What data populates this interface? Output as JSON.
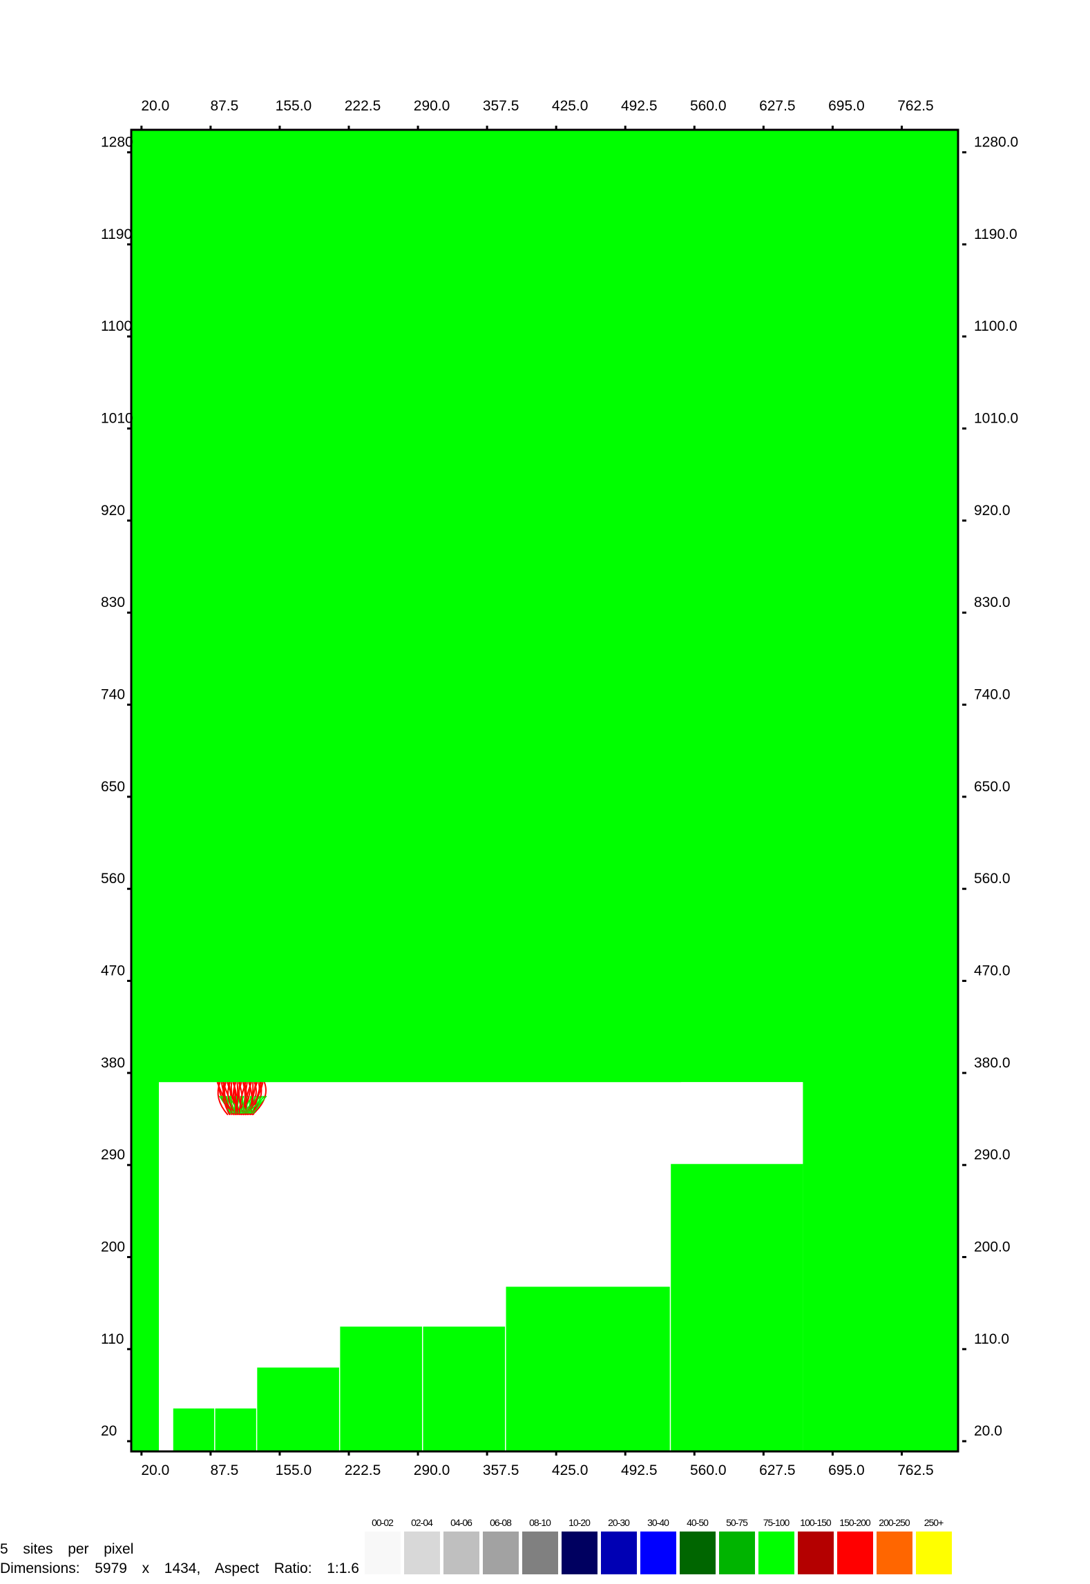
{
  "chart_data": {
    "type": "heatmap",
    "x_ticks": [
      "20.0",
      "87.5",
      "155.0",
      "222.5",
      "290.0",
      "357.5",
      "425.0",
      "492.5",
      "560.0",
      "627.5",
      "695.0",
      "762.5"
    ],
    "y_ticks_left": [
      "1280",
      "1190",
      "1100",
      "1010",
      "920",
      "830",
      "740",
      "650",
      "560",
      "470",
      "380",
      "290",
      "200",
      "110",
      "20"
    ],
    "y_ticks_right": [
      "1280.0",
      "1190.0",
      "1100.0",
      "1010.0",
      "920.0",
      "830.0",
      "740.0",
      "650.0",
      "560.0",
      "470.0",
      "380.0",
      "290.0",
      "200.0",
      "110.0",
      "20.0"
    ],
    "tick_values": {
      "x": [
        20.0,
        87.5,
        155.0,
        222.5,
        290.0,
        357.5,
        425.0,
        492.5,
        560.0,
        627.5,
        695.0,
        762.5
      ],
      "y": [
        1280,
        1190,
        1100,
        1010,
        920,
        830,
        740,
        650,
        560,
        470,
        380,
        290,
        200,
        110,
        20
      ]
    },
    "xlim": [
      10,
      817.5
    ],
    "ylim": [
      10,
      1302
    ],
    "background_color": "#00ff00",
    "empty_color": "#ffffff",
    "empty_regions": [
      {
        "x": [
          37,
          666
        ],
        "y": [
          10,
          371
        ]
      },
      {
        "x": [
          547,
          666
        ],
        "y": [
          291,
          371
        ]
      }
    ],
    "filled_blocks": [
      {
        "x": [
          51,
          91
        ],
        "y": [
          10,
          52
        ]
      },
      {
        "x": [
          92,
          132
        ],
        "y": [
          10,
          52
        ]
      },
      {
        "x": [
          133,
          213
        ],
        "y": [
          10,
          92
        ]
      },
      {
        "x": [
          214,
          294
        ],
        "y": [
          10,
          132
        ]
      },
      {
        "x": [
          295,
          375
        ],
        "y": [
          10,
          132
        ]
      },
      {
        "x": [
          376,
          536
        ],
        "y": [
          10,
          171
        ]
      },
      {
        "x": [
          537,
          666
        ],
        "y": [
          10,
          291
        ]
      },
      {
        "x": [
          666,
          817.5
        ],
        "y": [
          10,
          371
        ]
      }
    ],
    "fibers": {
      "x": [
        94,
        140
      ],
      "y": [
        339,
        371
      ],
      "colors": [
        "#ff0000",
        "#00ff00"
      ]
    },
    "legend": [
      {
        "label": "00-02",
        "color": "#f8f8f8"
      },
      {
        "label": "02-04",
        "color": "#d8d8d8"
      },
      {
        "label": "04-06",
        "color": "#bfbfbf"
      },
      {
        "label": "06-08",
        "color": "#a2a2a2"
      },
      {
        "label": "08-10",
        "color": "#808080"
      },
      {
        "label": "10-20",
        "color": "#000060"
      },
      {
        "label": "20-30",
        "color": "#0000b4"
      },
      {
        "label": "30-40",
        "color": "#0000ff"
      },
      {
        "label": "40-50",
        "color": "#006600"
      },
      {
        "label": "50-75",
        "color": "#00b400"
      },
      {
        "label": "75-100",
        "color": "#00ff00"
      },
      {
        "label": "100-150",
        "color": "#b40000"
      },
      {
        "label": "150-200",
        "color": "#ff0000"
      },
      {
        "label": "200-250",
        "color": "#ff6600"
      },
      {
        "label": "250+",
        "color": "#ffff00"
      }
    ]
  },
  "footer": {
    "sites_per_pixel": "5  sites  per  pixel",
    "dimensions": "Dimensions:  5979  x  1434,  Aspect  Ratio:  1:1.6"
  }
}
